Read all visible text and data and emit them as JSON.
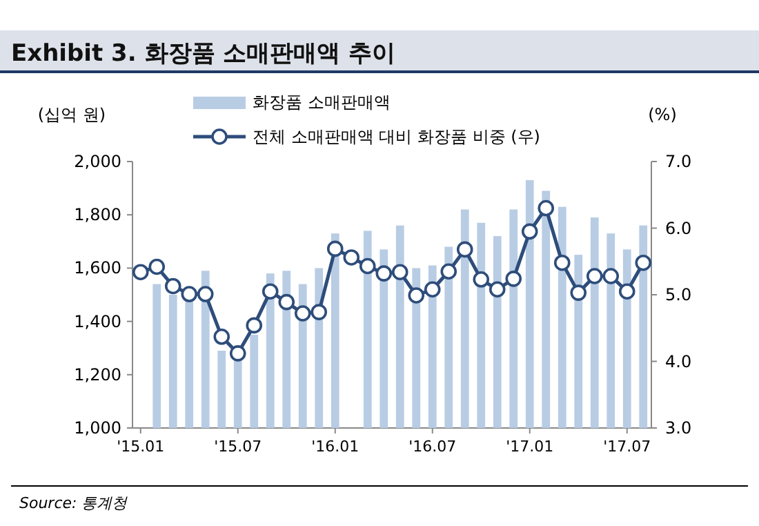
{
  "chart_data": {
    "type": "bar",
    "title": "Exhibit 3. 화장품 소매판매액 추이",
    "ylabel": "(십억 원)",
    "y2label": "(%)",
    "annotations": [
      "Source: 통계청"
    ],
    "categories": [
      "'15.01",
      null,
      null,
      null,
      null,
      null,
      "'15.07",
      null,
      null,
      null,
      null,
      null,
      "'16.01",
      null,
      null,
      null,
      null,
      null,
      "'16.07",
      null,
      null,
      null,
      null,
      null,
      "'17.01",
      null,
      null,
      null,
      null,
      null,
      "'17.07",
      null
    ],
    "series": [
      {
        "name": "화장품 소매판매액",
        "color": "#b8cce4",
        "values": [
          null,
          1540,
          1500,
          1490,
          1590,
          1290,
          1260,
          1350,
          1580,
          1590,
          1540,
          1600,
          1730,
          null,
          1740,
          1670,
          1760,
          1600,
          1610,
          1680,
          1820,
          1770,
          1720,
          1820,
          1930,
          1890,
          1830,
          1650,
          1790,
          1730,
          1670,
          1760
        ]
      },
      {
        "name": "전체 소매판매액 대비 화장품 비중 (우)",
        "type": "line",
        "axis": "y2",
        "marker": "circle",
        "color": "#2e4d7b",
        "values": [
          5.34,
          5.42,
          5.13,
          5.01,
          5.01,
          4.37,
          4.12,
          4.54,
          5.05,
          4.89,
          4.72,
          4.74,
          5.69,
          5.56,
          5.43,
          5.32,
          5.34,
          4.99,
          5.08,
          5.35,
          5.68,
          5.23,
          5.08,
          5.24,
          5.95,
          6.3,
          5.48,
          5.03,
          5.28,
          5.28,
          5.05,
          5.48
        ]
      }
    ],
    "ylim": [
      1000,
      2000
    ],
    "yticks": [
      {
        "value": 1000,
        "label": "1,000"
      },
      {
        "value": 1200,
        "label": "1,200"
      },
      {
        "value": 1400,
        "label": "1,400"
      },
      {
        "value": 1600,
        "label": "1,600"
      },
      {
        "value": 1800,
        "label": "1,800"
      },
      {
        "value": 2000,
        "label": "2,000"
      }
    ],
    "y2lim": [
      3,
      7
    ],
    "y2ticks": [
      {
        "value": 3,
        "label": "3.0"
      },
      {
        "value": 4,
        "label": "4.0"
      },
      {
        "value": 5,
        "label": "5.0"
      },
      {
        "value": 6,
        "label": "6.0"
      },
      {
        "value": 7,
        "label": "7.0"
      }
    ],
    "legend": "top"
  }
}
